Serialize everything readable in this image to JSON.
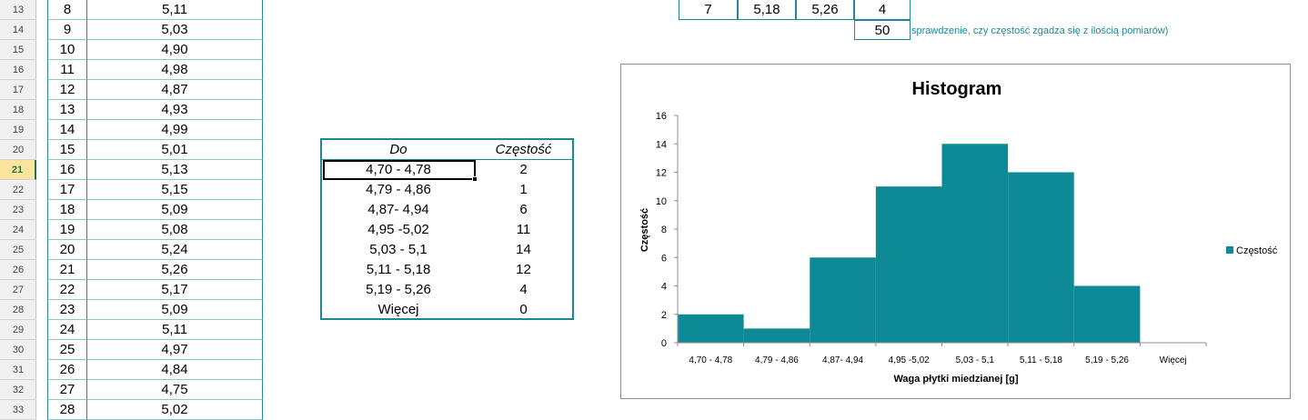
{
  "rows": [
    {
      "row": "13",
      "n": "8",
      "v": "5,11"
    },
    {
      "row": "14",
      "n": "9",
      "v": "5,03"
    },
    {
      "row": "15",
      "n": "10",
      "v": "4,90"
    },
    {
      "row": "16",
      "n": "11",
      "v": "4,98"
    },
    {
      "row": "17",
      "n": "12",
      "v": "4,87"
    },
    {
      "row": "18",
      "n": "13",
      "v": "4,93"
    },
    {
      "row": "19",
      "n": "14",
      "v": "4,99"
    },
    {
      "row": "20",
      "n": "15",
      "v": "5,01"
    },
    {
      "row": "21",
      "n": "16",
      "v": "5,13"
    },
    {
      "row": "22",
      "n": "17",
      "v": "5,15"
    },
    {
      "row": "23",
      "n": "18",
      "v": "5,09"
    },
    {
      "row": "24",
      "n": "19",
      "v": "5,08"
    },
    {
      "row": "25",
      "n": "20",
      "v": "5,24"
    },
    {
      "row": "26",
      "n": "21",
      "v": "5,26"
    },
    {
      "row": "27",
      "n": "22",
      "v": "5,17"
    },
    {
      "row": "28",
      "n": "23",
      "v": "5,09"
    },
    {
      "row": "29",
      "n": "24",
      "v": "5,11"
    },
    {
      "row": "30",
      "n": "25",
      "v": "4,97"
    },
    {
      "row": "31",
      "n": "26",
      "v": "4,84"
    },
    {
      "row": "32",
      "n": "27",
      "v": "4,75"
    },
    {
      "row": "33",
      "n": "28",
      "v": "5,02"
    }
  ],
  "active_row": "21",
  "top_table": {
    "row13": [
      "7",
      "5,18",
      "5,26",
      "4"
    ],
    "total": "50",
    "note": "sprawdzenie, czy częstość zgadza się z ilością pomiarów)"
  },
  "freq_table": {
    "header_do": "Do",
    "header_freq": "Częstość",
    "rows": [
      {
        "cat": "4,70 - 4,78",
        "val": "2"
      },
      {
        "cat": "4,79 - 4,86",
        "val": "1"
      },
      {
        "cat": "4,87- 4,94",
        "val": "6"
      },
      {
        "cat": "4,95 -5,02",
        "val": "11"
      },
      {
        "cat": "5,03 - 5,1",
        "val": "14"
      },
      {
        "cat": "5,11 - 5,18",
        "val": "12"
      },
      {
        "cat": "5,19 - 5,26",
        "val": "4"
      },
      {
        "cat": "Więcej",
        "val": "0"
      }
    ]
  },
  "colors": {
    "accent": "#1b8a96",
    "bar": "#0e8a96"
  },
  "chart_data": {
    "type": "bar",
    "title": "Histogram",
    "xlabel": "Waga płytki miedzianej [g]",
    "ylabel": "Częstość",
    "categories": [
      "4,70 - 4,78",
      "4,79 - 4,86",
      "4,87- 4,94",
      "4,95 -5,02",
      "5,03 - 5,1",
      "5,11 - 5,18",
      "5,19 - 5,26",
      "Więcej"
    ],
    "series": [
      {
        "name": "Częstość",
        "values": [
          2,
          1,
          6,
          11,
          14,
          12,
          4,
          0
        ]
      }
    ],
    "ylim": [
      0,
      16
    ],
    "yticks": [
      0,
      2,
      4,
      6,
      8,
      10,
      12,
      14,
      16
    ],
    "grid": false,
    "legend": "right"
  }
}
